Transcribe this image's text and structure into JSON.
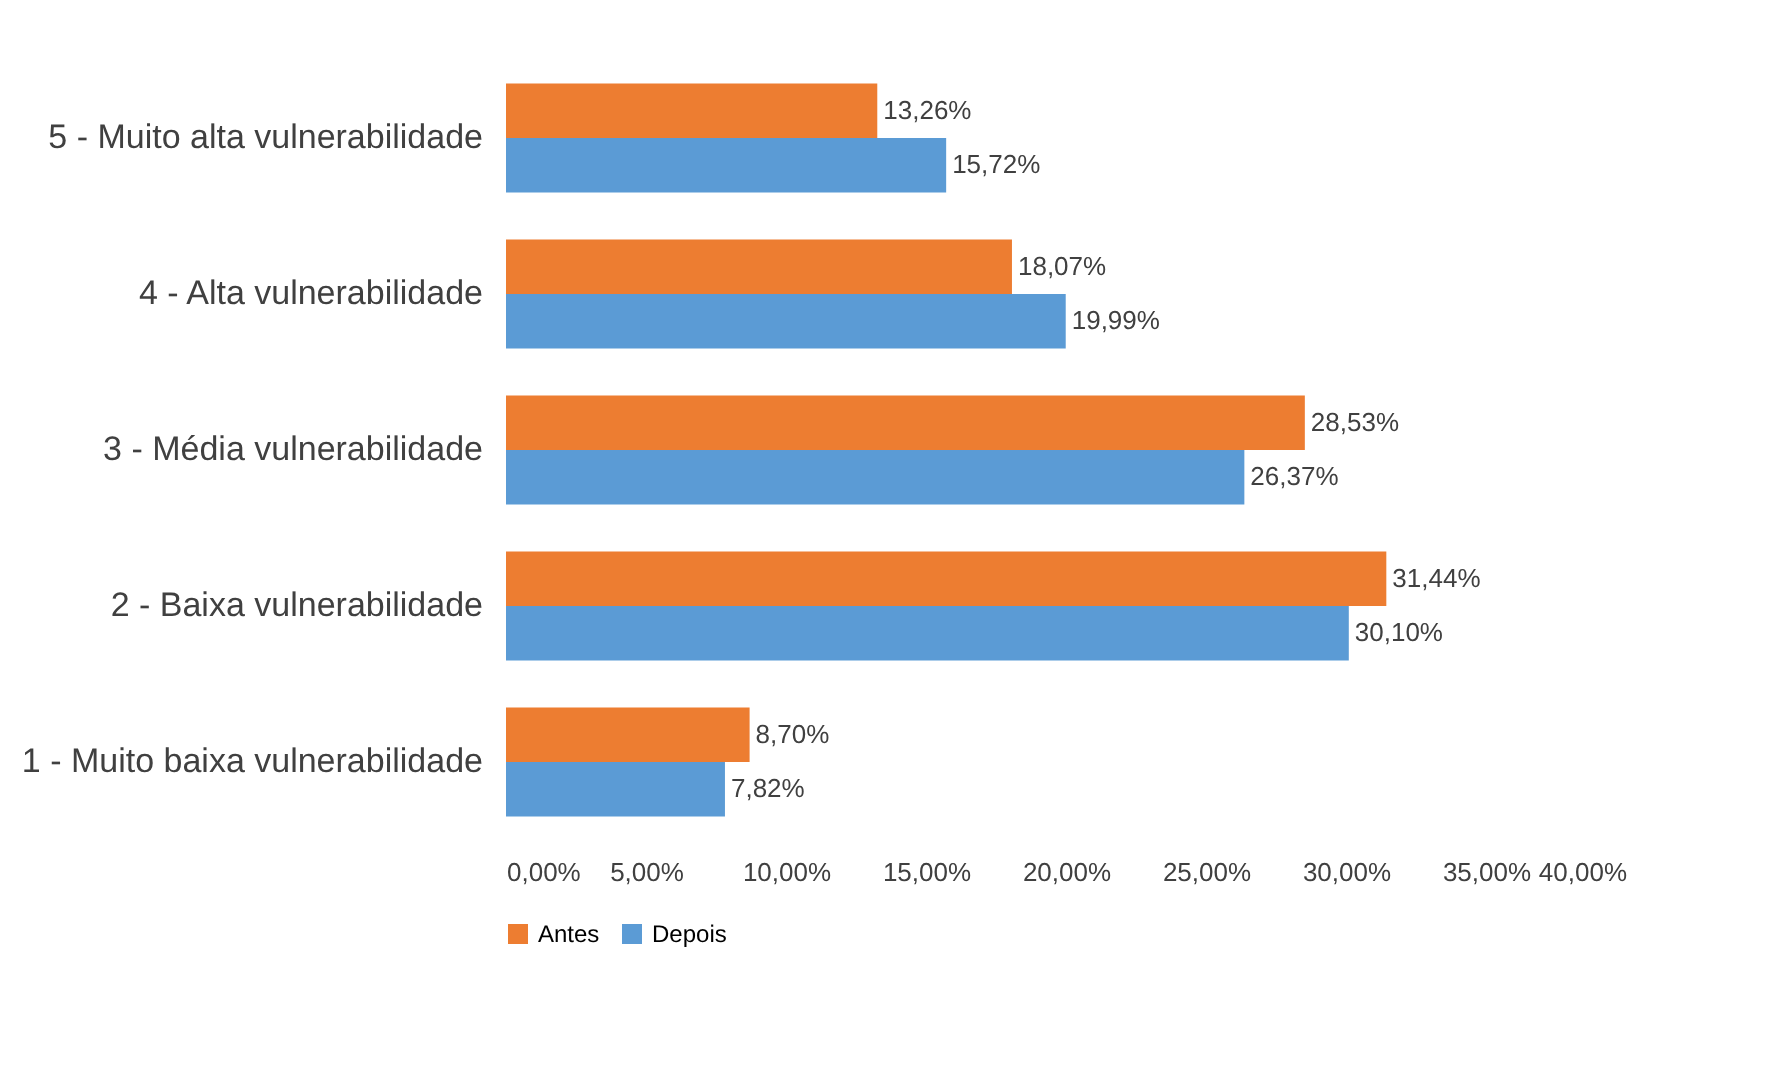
{
  "chart_data": {
    "type": "bar",
    "orientation": "horizontal",
    "categories": [
      "5 - Muito alta vulnerabilidade",
      "4 - Alta vulnerabilidade",
      "3 - Média vulnerabilidade",
      "2 - Baixa vulnerabilidade",
      "1 - Muito baixa vulnerabilidade"
    ],
    "series": [
      {
        "name": "Antes",
        "color": "#ed7d31",
        "values": [
          13.26,
          18.07,
          28.53,
          31.44,
          8.7
        ],
        "value_labels": [
          "13,26%",
          "18,07%",
          "28,53%",
          "31,44%",
          "8,70%"
        ]
      },
      {
        "name": "Depois",
        "color": "#5b9bd5",
        "values": [
          15.72,
          19.99,
          26.37,
          30.1,
          7.82
        ],
        "value_labels": [
          "15,72%",
          "19,99%",
          "26,37%",
          "30,10%",
          "7,82%"
        ]
      }
    ],
    "xlim": [
      0,
      40
    ],
    "xticks": [
      {
        "value": 0,
        "label": "0,00%"
      },
      {
        "value": 5,
        "label": "5,00%"
      },
      {
        "value": 10,
        "label": "10,00%"
      },
      {
        "value": 15,
        "label": "15,00%"
      },
      {
        "value": 20,
        "label": "20,00%"
      },
      {
        "value": 25,
        "label": "25,00%"
      },
      {
        "value": 30,
        "label": "30,00%"
      },
      {
        "value": 35,
        "label": "35,00%"
      },
      {
        "value": 40,
        "label": "40,00%"
      }
    ],
    "legend": "bottom"
  }
}
